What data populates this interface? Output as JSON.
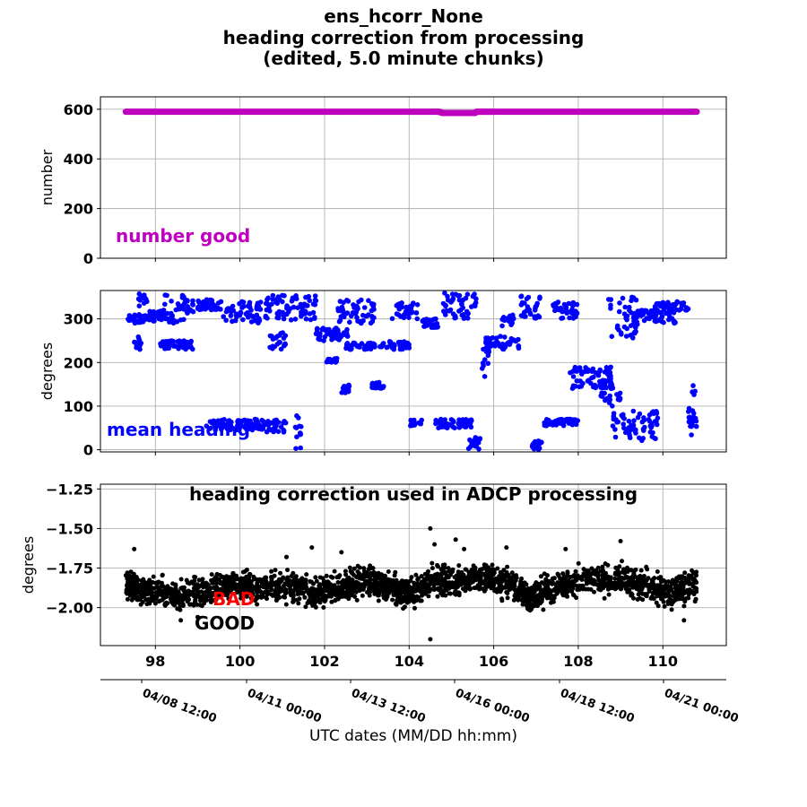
{
  "figure": {
    "title_lines": [
      "ens_hcorr_None",
      "heading correction from processing",
      "(edited, 5.0 minute chunks)"
    ],
    "x_label": "UTC dates (MM/DD hh:mm)",
    "date_ticks": [
      "04/08 12:00",
      "04/11 00:00",
      "04/13 12:00",
      "04/16 00:00",
      "04/18 12:00",
      "04/21 00:00"
    ]
  },
  "colors": {
    "number_good": "#bf00bf",
    "mean_heading": "#0000ff",
    "hcorr": "#000000",
    "bad_label": "#ff0000",
    "good_label": "#000000"
  },
  "chart_data": [
    {
      "type": "scatter",
      "ylabel": "number",
      "annotation": "number good",
      "xlim": [
        96.7,
        111.5
      ],
      "ylim": [
        0,
        650
      ],
      "x_ticks": [],
      "y_ticks": [
        "0",
        "200",
        "400",
        "600"
      ],
      "grid": true,
      "series": [
        {
          "x": [
            97.3,
            98.0,
            99.0,
            100.0,
            101.0,
            102.0,
            103.0,
            104.0,
            104.7,
            104.8,
            105.2,
            105.55,
            105.6,
            106.0,
            107.0,
            108.0,
            109.0,
            110.0,
            110.8
          ],
          "y": [
            590,
            590,
            590,
            590,
            590,
            590,
            590,
            590,
            590,
            585,
            585,
            585,
            590,
            590,
            590,
            590,
            590,
            590,
            590
          ]
        }
      ]
    },
    {
      "type": "scatter",
      "ylabel": "degrees",
      "annotation": "mean heading",
      "xlim": [
        96.7,
        111.5
      ],
      "ylim": [
        -5,
        365
      ],
      "x_ticks": [],
      "y_ticks": [
        "0",
        "100",
        "200",
        "300"
      ],
      "grid": true,
      "clusters": [
        {
          "x": [
            97.3,
            97.8
          ],
          "y": [
            290,
            310
          ]
        },
        {
          "x": [
            97.5,
            97.7
          ],
          "y": [
            230,
            260
          ]
        },
        {
          "x": [
            97.6,
            97.8
          ],
          "y": [
            320,
            360
          ]
        },
        {
          "x": [
            97.8,
            98.3
          ],
          "y": [
            295,
            320
          ]
        },
        {
          "x": [
            98.1,
            98.9
          ],
          "y": [
            230,
            250
          ]
        },
        {
          "x": [
            98.2,
            98.9
          ],
          "y": [
            290,
            355
          ]
        },
        {
          "x": [
            99.0,
            99.6
          ],
          "y": [
            320,
            345
          ]
        },
        {
          "x": [
            99.2,
            100.5
          ],
          "y": [
            45,
            70
          ]
        },
        {
          "x": [
            99.6,
            100.5
          ],
          "y": [
            290,
            340
          ]
        },
        {
          "x": [
            100.5,
            101.1
          ],
          "y": [
            40,
            70
          ]
        },
        {
          "x": [
            100.6,
            101.2
          ],
          "y": [
            300,
            360
          ]
        },
        {
          "x": [
            100.7,
            101.1
          ],
          "y": [
            230,
            270
          ]
        },
        {
          "x": [
            101.2,
            101.8
          ],
          "y": [
            295,
            355
          ]
        },
        {
          "x": [
            101.3,
            101.5
          ],
          "y": [
            0,
            80
          ]
        },
        {
          "x": [
            101.8,
            102.6
          ],
          "y": [
            250,
            280
          ]
        },
        {
          "x": [
            102.0,
            102.3
          ],
          "y": [
            200,
            210
          ]
        },
        {
          "x": [
            102.3,
            103.2
          ],
          "y": [
            290,
            345
          ]
        },
        {
          "x": [
            102.4,
            102.6
          ],
          "y": [
            130,
            150
          ]
        },
        {
          "x": [
            102.5,
            103.2
          ],
          "y": [
            230,
            245
          ]
        },
        {
          "x": [
            103.1,
            103.4
          ],
          "y": [
            140,
            155
          ]
        },
        {
          "x": [
            103.3,
            104.0
          ],
          "y": [
            230,
            250
          ]
        },
        {
          "x": [
            103.6,
            104.2
          ],
          "y": [
            300,
            340
          ]
        },
        {
          "x": [
            104.0,
            104.3
          ],
          "y": [
            55,
            70
          ]
        },
        {
          "x": [
            104.3,
            104.7
          ],
          "y": [
            280,
            300
          ]
        },
        {
          "x": [
            104.6,
            105.5
          ],
          "y": [
            50,
            70
          ]
        },
        {
          "x": [
            104.8,
            105.6
          ],
          "y": [
            300,
            360
          ]
        },
        {
          "x": [
            105.4,
            105.7
          ],
          "y": [
            0,
            30
          ]
        },
        {
          "x": [
            105.7,
            105.9
          ],
          "y": [
            160,
            240
          ]
        },
        {
          "x": [
            105.8,
            106.6
          ],
          "y": [
            230,
            260
          ]
        },
        {
          "x": [
            106.2,
            106.5
          ],
          "y": [
            280,
            310
          ]
        },
        {
          "x": [
            106.6,
            107.1
          ],
          "y": [
            300,
            360
          ]
        },
        {
          "x": [
            106.9,
            107.2
          ],
          "y": [
            0,
            20
          ]
        },
        {
          "x": [
            107.2,
            108.0
          ],
          "y": [
            55,
            70
          ]
        },
        {
          "x": [
            107.4,
            108.0
          ],
          "y": [
            300,
            340
          ]
        },
        {
          "x": [
            107.8,
            108.8
          ],
          "y": [
            140,
            190
          ]
        },
        {
          "x": [
            108.5,
            109.0
          ],
          "y": [
            100,
            160
          ]
        },
        {
          "x": [
            108.7,
            109.4
          ],
          "y": [
            250,
            360
          ]
        },
        {
          "x": [
            108.8,
            109.9
          ],
          "y": [
            20,
            90
          ]
        },
        {
          "x": [
            109.3,
            110.3
          ],
          "y": [
            290,
            320
          ]
        },
        {
          "x": [
            109.8,
            110.6
          ],
          "y": [
            320,
            340
          ]
        },
        {
          "x": [
            110.6,
            110.8
          ],
          "y": [
            20,
            150
          ]
        },
        {
          "x": [
            110.6,
            110.8
          ],
          "y": [
            40,
            75
          ]
        }
      ]
    },
    {
      "type": "scatter",
      "ylabel": "degrees",
      "annotation": "heading correction used in ADCP processing",
      "status_labels": [
        "BAD",
        "GOOD"
      ],
      "xlim": [
        96.7,
        111.5
      ],
      "ylim": [
        -2.24,
        -1.22
      ],
      "x_ticks": [
        "98",
        "100",
        "102",
        "104",
        "106",
        "108",
        "110"
      ],
      "y_ticks": [
        "−1.25",
        "−1.50",
        "−1.75",
        "−2.00"
      ],
      "grid": true,
      "trend": [
        {
          "x": 97.3,
          "y": -1.86
        },
        {
          "x": 97.8,
          "y": -1.9
        },
        {
          "x": 98.5,
          "y": -1.92
        },
        {
          "x": 99.2,
          "y": -1.9
        },
        {
          "x": 99.8,
          "y": -1.84
        },
        {
          "x": 100.5,
          "y": -1.88
        },
        {
          "x": 101.2,
          "y": -1.86
        },
        {
          "x": 101.8,
          "y": -1.92
        },
        {
          "x": 102.4,
          "y": -1.86
        },
        {
          "x": 103.0,
          "y": -1.82
        },
        {
          "x": 103.5,
          "y": -1.88
        },
        {
          "x": 104.0,
          "y": -1.92
        },
        {
          "x": 104.6,
          "y": -1.82
        },
        {
          "x": 105.2,
          "y": -1.84
        },
        {
          "x": 105.8,
          "y": -1.8
        },
        {
          "x": 106.4,
          "y": -1.86
        },
        {
          "x": 106.9,
          "y": -1.94
        },
        {
          "x": 107.5,
          "y": -1.86
        },
        {
          "x": 108.2,
          "y": -1.83
        },
        {
          "x": 109.0,
          "y": -1.82
        },
        {
          "x": 109.6,
          "y": -1.86
        },
        {
          "x": 110.2,
          "y": -1.9
        },
        {
          "x": 110.8,
          "y": -1.86
        }
      ],
      "outliers": [
        {
          "x": 97.5,
          "y": -1.63
        },
        {
          "x": 98.6,
          "y": -2.08
        },
        {
          "x": 99.0,
          "y": -2.06
        },
        {
          "x": 101.1,
          "y": -1.68
        },
        {
          "x": 101.7,
          "y": -1.62
        },
        {
          "x": 102.4,
          "y": -1.65
        },
        {
          "x": 104.5,
          "y": -1.5
        },
        {
          "x": 104.5,
          "y": -2.2
        },
        {
          "x": 104.6,
          "y": -1.6
        },
        {
          "x": 105.1,
          "y": -1.57
        },
        {
          "x": 105.3,
          "y": -1.63
        },
        {
          "x": 106.3,
          "y": -1.62
        },
        {
          "x": 107.7,
          "y": -1.63
        },
        {
          "x": 109.0,
          "y": -1.58
        },
        {
          "x": 110.5,
          "y": -2.08
        }
      ]
    }
  ]
}
